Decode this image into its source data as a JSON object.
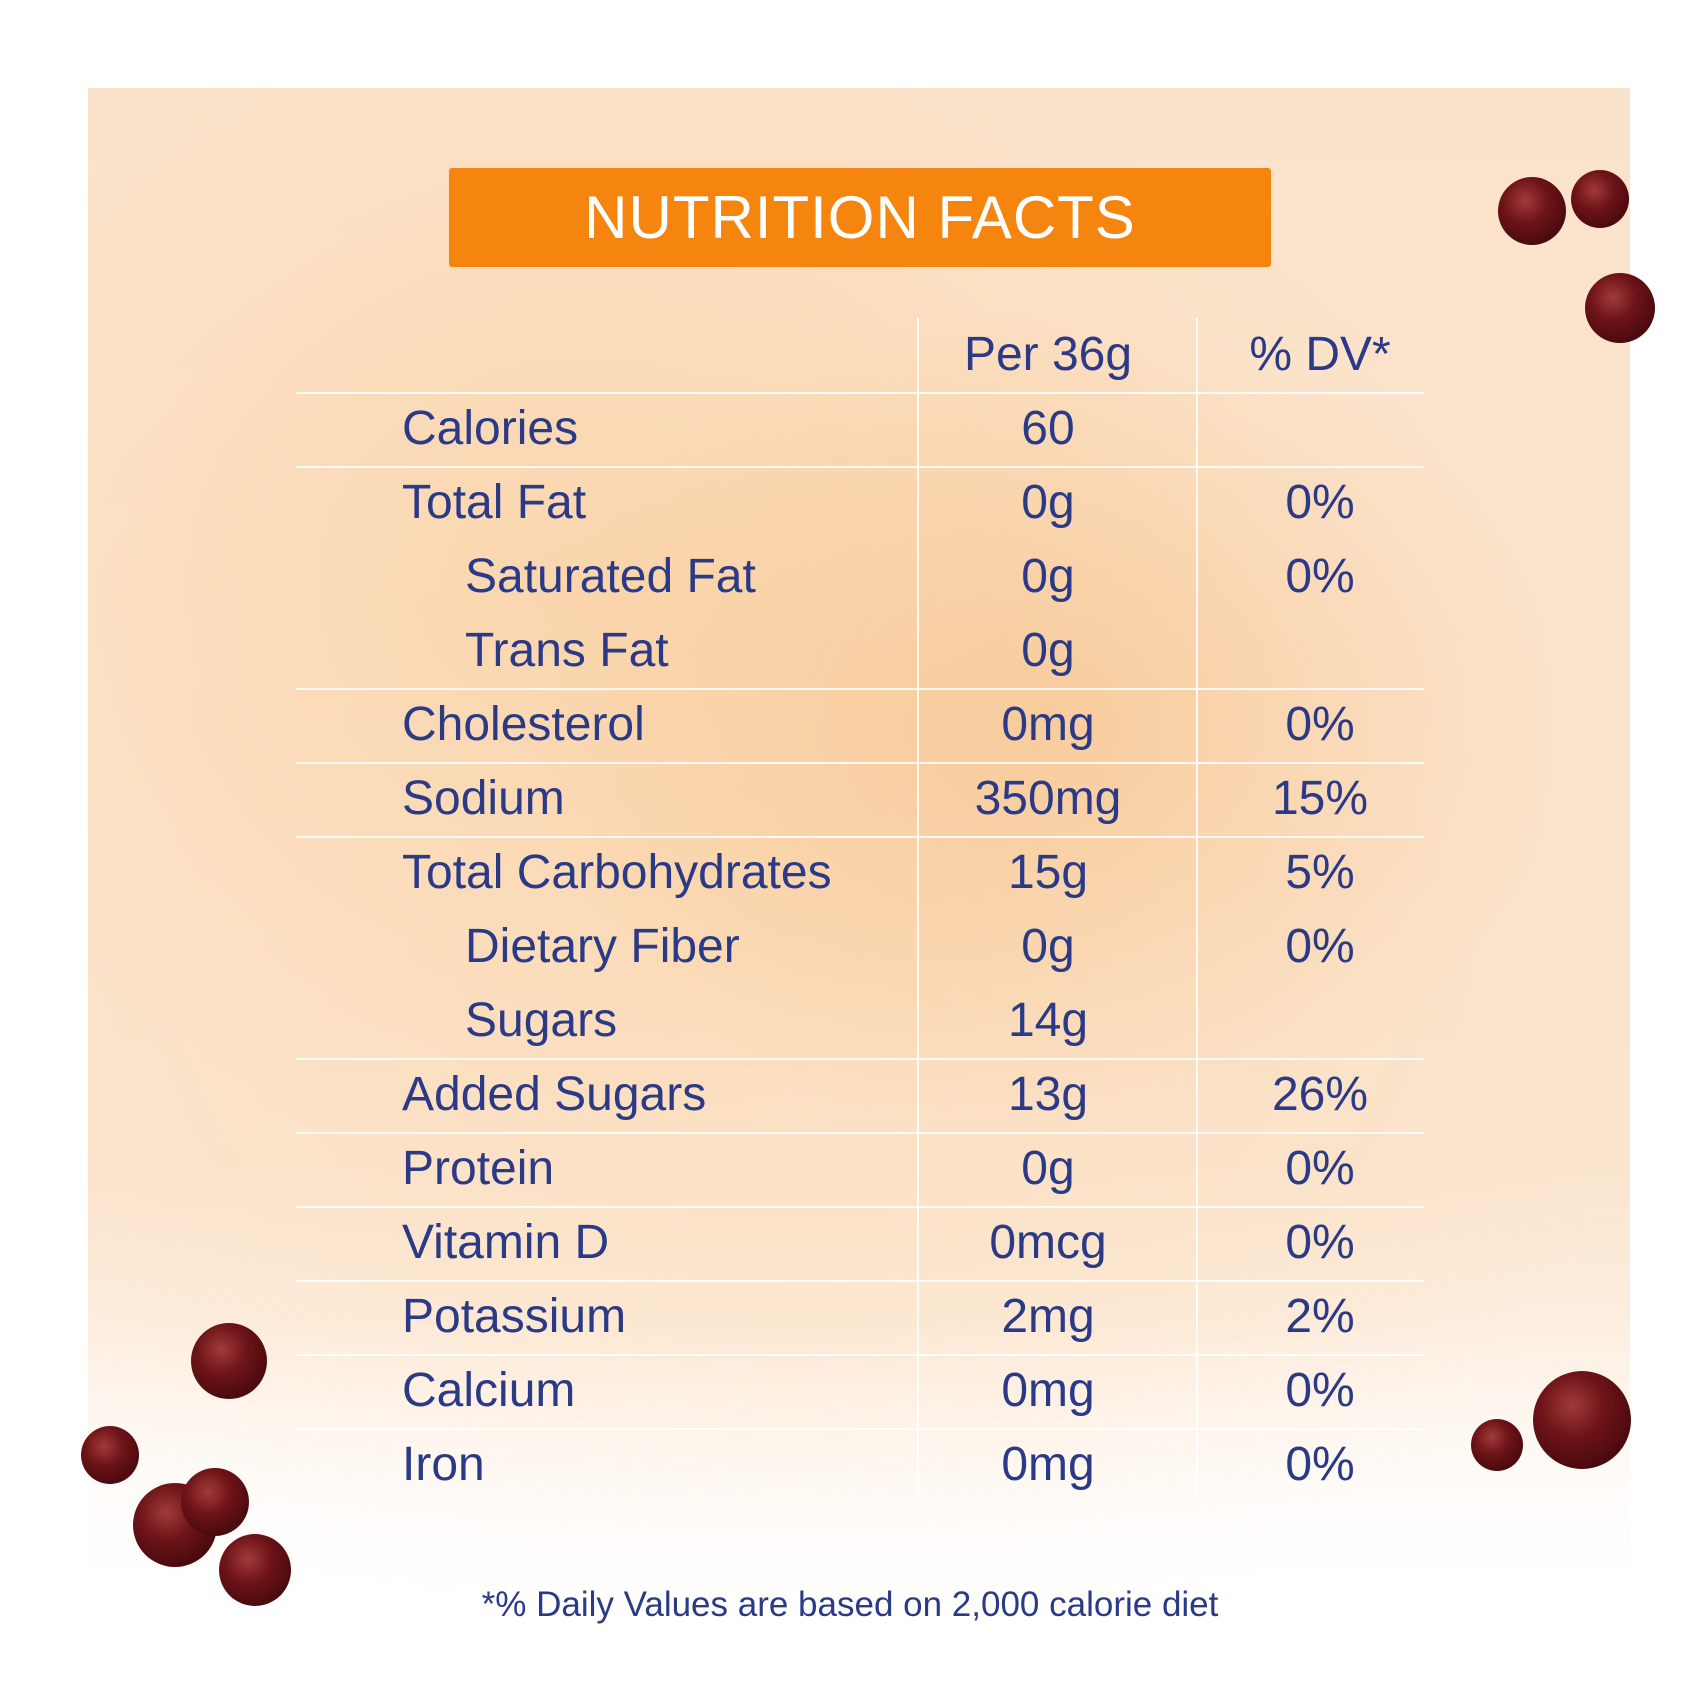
{
  "header": {
    "title": "NUTRITION FACTS"
  },
  "table": {
    "columns": [
      "Per 36g",
      "% DV*"
    ],
    "rows": [
      {
        "name": "Calories",
        "amount": "60"
      },
      {
        "name": "Total Fat",
        "amount": "0g",
        "dv": "0%"
      },
      {
        "name": "Saturated Fat",
        "amount": "0g",
        "dv": "0%"
      },
      {
        "name": "Trans Fat",
        "amount": "0g"
      },
      {
        "name": "Cholesterol",
        "amount": "0mg",
        "dv": "0%"
      },
      {
        "name": "Sodium",
        "amount": "350mg",
        "dv": "15%"
      },
      {
        "name": "Total Carbohydrates",
        "amount": "15g",
        "dv": "5%"
      },
      {
        "name": "Dietary Fiber",
        "amount": "0g",
        "dv": "0%"
      },
      {
        "name": "Sugars",
        "amount": "14g"
      },
      {
        "name": "Added Sugars",
        "amount": "13g",
        "dv": "26%"
      },
      {
        "name": "Protein",
        "amount": "0g",
        "dv": "0%"
      },
      {
        "name": "Vitamin D",
        "amount": "0mcg",
        "dv": "0%"
      },
      {
        "name": "Potassium",
        "amount": "2mg",
        "dv": "2%"
      },
      {
        "name": "Calcium",
        "amount": "0mg",
        "dv": "0%"
      },
      {
        "name": "Iron",
        "amount": "0mg",
        "dv": "0%"
      }
    ]
  },
  "footnote": "*% Daily Values are based on 2,000 calorie diet"
}
